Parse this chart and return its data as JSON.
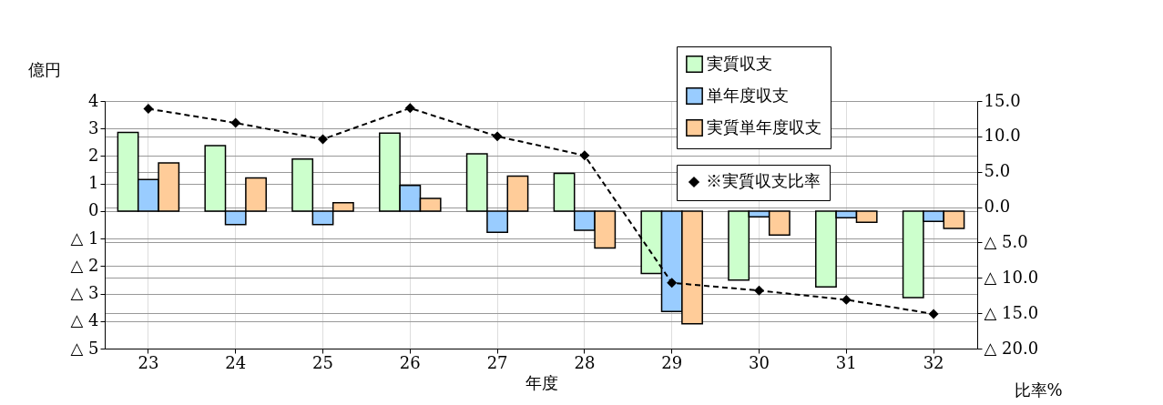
{
  "chart_data": {
    "type": "bar",
    "xlabel": "年度",
    "ylabel": "億円",
    "y2label": "比率%",
    "categories": [
      "23",
      "24",
      "25",
      "26",
      "27",
      "28",
      "29",
      "30",
      "31",
      "32"
    ],
    "series": [
      {
        "name": "実質収支",
        "color": "#ccffcc",
        "values": [
          2.86,
          2.38,
          1.89,
          2.83,
          2.08,
          1.37,
          -2.27,
          -2.51,
          -2.76,
          -3.15
        ]
      },
      {
        "name": "単年度収支",
        "color": "#99ccff",
        "values": [
          1.15,
          -0.49,
          -0.49,
          0.93,
          -0.77,
          -0.7,
          -3.65,
          -0.21,
          -0.24,
          -0.38
        ]
      },
      {
        "name": "実質単年度収支",
        "color": "#ffcc99",
        "values": [
          1.75,
          1.2,
          0.3,
          0.46,
          1.27,
          -1.34,
          -4.1,
          -0.87,
          -0.41,
          -0.63
        ]
      },
      {
        "name": "※実質収支比率",
        "type": "line",
        "axis": "y2",
        "color": "#000000",
        "values": [
          13.9,
          11.9,
          9.6,
          14.0,
          10.0,
          7.3,
          -10.7,
          -11.8,
          -13.1,
          -15.1
        ]
      }
    ],
    "ylim": [
      -5,
      4
    ],
    "yticks": [
      {
        "value": -5,
        "label": "△ 5"
      },
      {
        "value": -4,
        "label": "△ 4"
      },
      {
        "value": -3,
        "label": "△ 3"
      },
      {
        "value": -2,
        "label": "△ 2"
      },
      {
        "value": -1,
        "label": "△ 1"
      },
      0,
      1,
      2,
      3,
      4
    ],
    "y2lim": [
      -20,
      15
    ],
    "y2ticks": [
      {
        "value": -20,
        "label": "△ 20.0"
      },
      {
        "value": -15,
        "label": "△ 15.0"
      },
      {
        "value": -10,
        "label": "△ 10.0"
      },
      {
        "value": -5,
        "label": "△ 5.0"
      },
      {
        "value": 0,
        "label": "0.0"
      },
      {
        "value": 5,
        "label": "5.0"
      },
      {
        "value": 10,
        "label": "10.0"
      },
      {
        "value": 15,
        "label": "15.0"
      }
    ],
    "marker": "diamond",
    "line_style": "dashed",
    "grid": true,
    "legend": "top right"
  }
}
